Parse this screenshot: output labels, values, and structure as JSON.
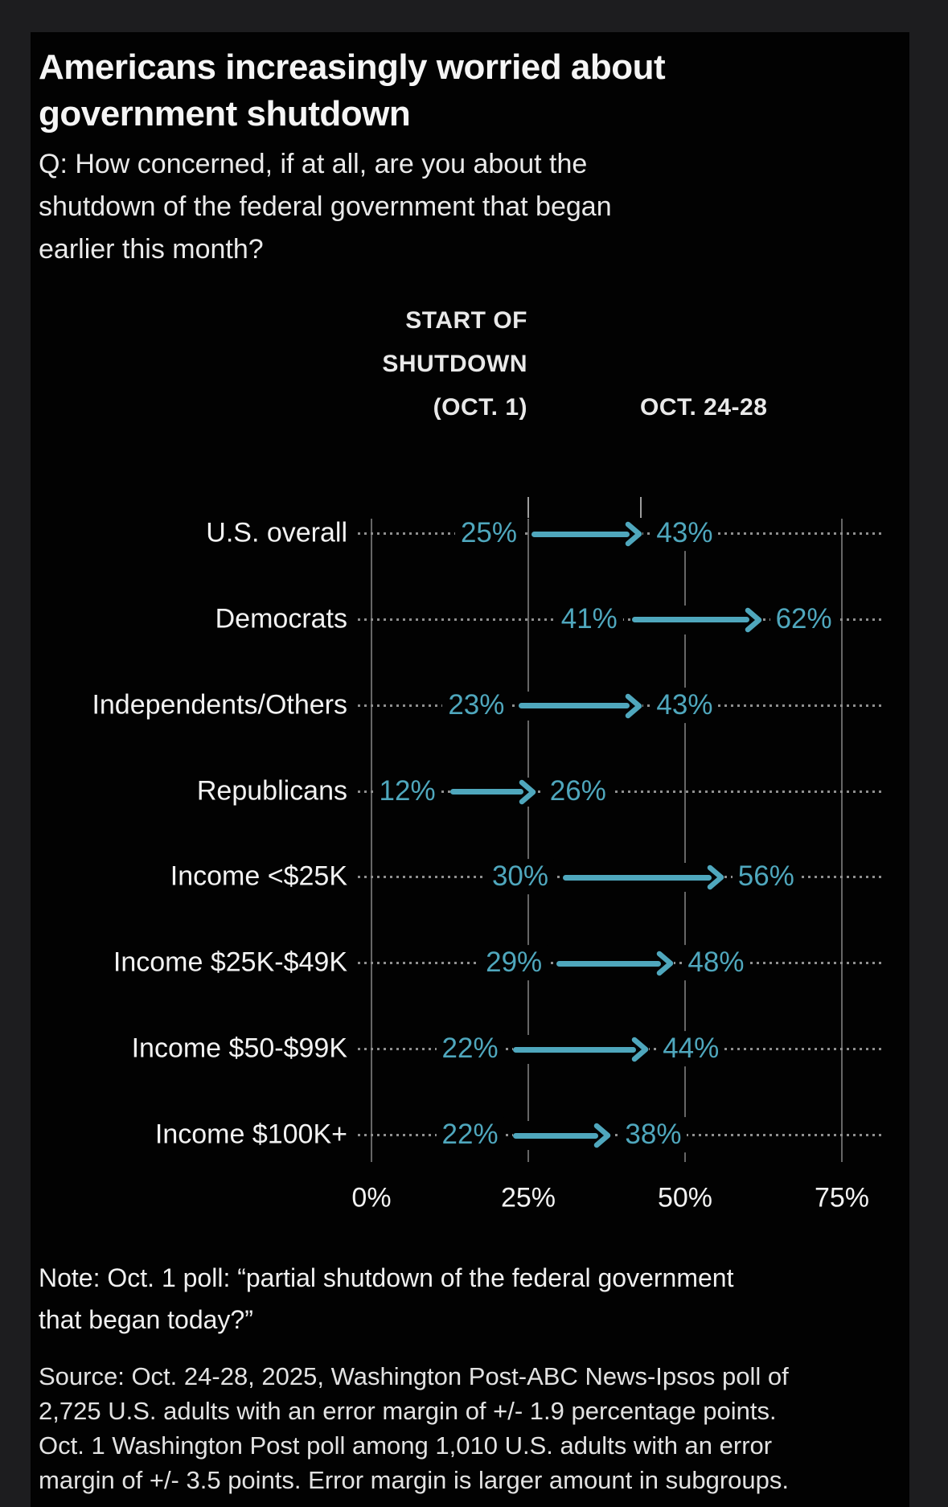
{
  "header": {
    "title_lines": [
      "Americans increasingly worried about",
      "government shutdown"
    ]
  },
  "question_lines": [
    "Q: How concerned, if at all, are you about the",
    "shutdown of the federal government that began",
    "earlier this month?"
  ],
  "chart_data": {
    "type": "dumbbell-arrow",
    "title": "Americans increasingly worried about government shutdown",
    "column_headers": {
      "start_lines": [
        "START OF",
        "SHUTDOWN",
        "(OCT. 1)"
      ],
      "end": "OCT. 24-28"
    },
    "categories": [
      "U.S. overall",
      "Democrats",
      "Independents/Others",
      "Republicans",
      "Income <$25K",
      "Income $25K-$49K",
      "Income $50-$99K",
      "Income $100K+"
    ],
    "series": [
      {
        "name": "Start of shutdown (Oct. 1)",
        "values": [
          25,
          41,
          23,
          12,
          30,
          29,
          22,
          22
        ]
      },
      {
        "name": "Oct. 24-28",
        "values": [
          43,
          62,
          43,
          26,
          56,
          48,
          44,
          38
        ]
      }
    ],
    "value_suffix": "%",
    "x_axis": {
      "ticks": [
        "0%",
        "25%",
        "50%",
        "75%"
      ],
      "tick_values": [
        0,
        25,
        50,
        75
      ],
      "range": [
        0,
        75
      ]
    },
    "grid": true,
    "legend_position": "top",
    "accent_color": "#4fa7bd",
    "grid_color": "#666666",
    "dot_leader_color": "#8f8f8f",
    "label_color": "#f2f2f2"
  },
  "note_lines": [
    "Note: Oct. 1 poll: “partial shutdown of the federal government",
    "that began today?”"
  ],
  "source_lines": [
    "Source: Oct. 24-28, 2025, Washington Post-ABC News-Ipsos poll of",
    "2,725 U.S. adults with an error margin of +/- 1.9 percentage points.",
    "Oct. 1 Washington Post poll among 1,010 U.S. adults with an error",
    "margin of +/- 3.5 points. Error margin is larger amount in subgroups."
  ]
}
